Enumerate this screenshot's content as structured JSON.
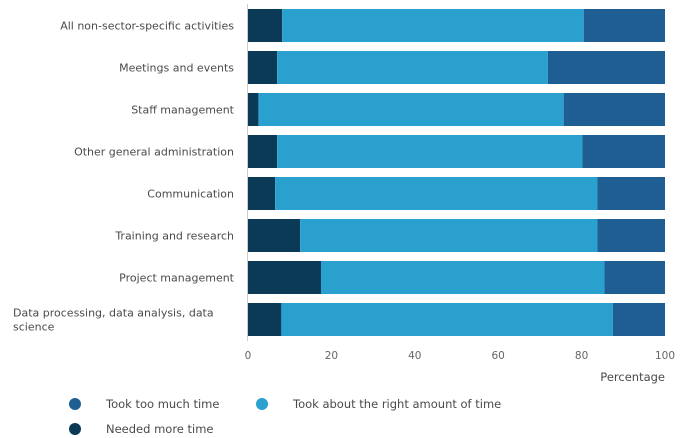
{
  "chart_data": {
    "type": "bar",
    "orientation": "horizontal",
    "stacked": true,
    "title": "",
    "xlabel": "Percentage",
    "ylabel": "",
    "xlim": [
      0,
      100
    ],
    "xticks": [
      "0",
      "20",
      "40",
      "60",
      "80",
      "100"
    ],
    "categories": [
      "All non-sector-specific activities",
      "Meetings and events",
      "Staff management",
      "Other general administration",
      "Communication",
      "Training and research",
      "Project management",
      "Data processing, data analysis, data science"
    ],
    "series": [
      {
        "name": "Needed more time",
        "color": "#0b3a57",
        "values": [
          8.2,
          7.0,
          2.5,
          7.0,
          6.5,
          12.5,
          17.5,
          8.0
        ]
      },
      {
        "name": "Took about the right amount of time",
        "color": "#2aa0cf",
        "values": [
          72.3,
          64.9,
          73.2,
          73.2,
          77.3,
          71.3,
          68.0,
          79.5
        ]
      },
      {
        "name": "Took too much time",
        "color": "#1f5e92",
        "values": [
          19.5,
          28.1,
          24.3,
          19.8,
          16.2,
          16.2,
          14.5,
          12.5
        ]
      }
    ],
    "legend": [
      {
        "label": "Took too much time",
        "color": "#1f5e92"
      },
      {
        "label": "Took about the right amount of time",
        "color": "#2aa0cf"
      },
      {
        "label": "Needed more time",
        "color": "#0b3a57"
      }
    ]
  }
}
